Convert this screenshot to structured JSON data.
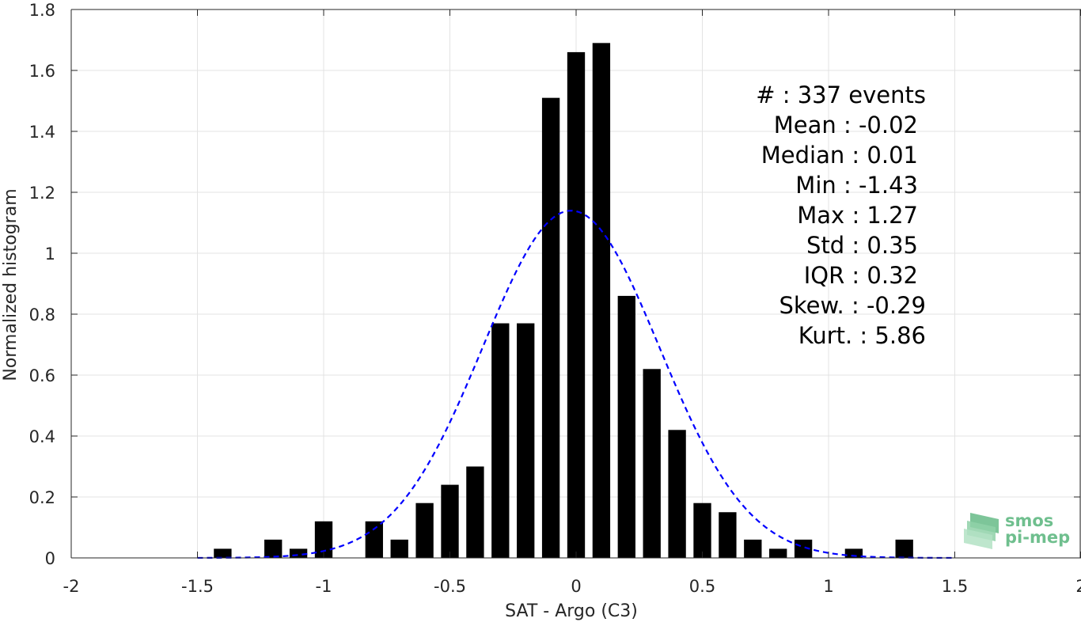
{
  "chart_data": {
    "type": "bar",
    "xlabel": "SAT - Argo (C3)",
    "ylabel": "Normalized histogram",
    "xlim": [
      -2,
      2
    ],
    "ylim": [
      0,
      1.8
    ],
    "grid": true,
    "bar_width": 0.07,
    "xticks": [
      -2,
      -1.5,
      -1,
      -0.5,
      0,
      0.5,
      1,
      1.5,
      2
    ],
    "xtick_labels": [
      "-2",
      "-1.5",
      "-1",
      "-0.5",
      "0",
      "0.5",
      "1",
      "1.5",
      "2"
    ],
    "yticks": [
      0,
      0.2,
      0.4,
      0.6,
      0.8,
      1,
      1.2,
      1.4,
      1.6,
      1.8
    ],
    "ytick_labels": [
      "0",
      "0.2",
      "0.4",
      "0.6",
      "0.8",
      "1",
      "1.2",
      "1.4",
      "1.6",
      "1.8"
    ],
    "bars": {
      "x": [
        -1.4,
        -1.2,
        -1.1,
        -1.0,
        -0.8,
        -0.7,
        -0.6,
        -0.5,
        -0.4,
        -0.3,
        -0.2,
        -0.1,
        0.0,
        0.1,
        0.2,
        0.3,
        0.4,
        0.5,
        0.6,
        0.7,
        0.8,
        0.9,
        1.1,
        1.3
      ],
      "values": [
        0.03,
        0.06,
        0.03,
        0.12,
        0.12,
        0.06,
        0.18,
        0.24,
        0.3,
        0.77,
        0.77,
        1.51,
        1.66,
        1.69,
        0.86,
        0.62,
        0.42,
        0.18,
        0.15,
        0.06,
        0.03,
        0.06,
        0.03,
        0.06
      ],
      "color": "#000000"
    },
    "fit_curve": {
      "kind": "gaussian",
      "mean": -0.02,
      "std": 0.35,
      "x_range": [
        -1.5,
        1.5
      ],
      "color": "#0000ff",
      "style": "dashed"
    },
    "annotations": [
      "#  : 337 events",
      "Mean : -0.02",
      "Median : 0.01",
      "Min : -1.43",
      "Max : 1.27",
      "Std : 0.35",
      "IQR : 0.32",
      "Skew. : -0.29",
      "Kurt. : 5.86"
    ]
  },
  "logo": {
    "line1": "smos",
    "line2": "pi-mep",
    "color": "#6fbf8e"
  }
}
